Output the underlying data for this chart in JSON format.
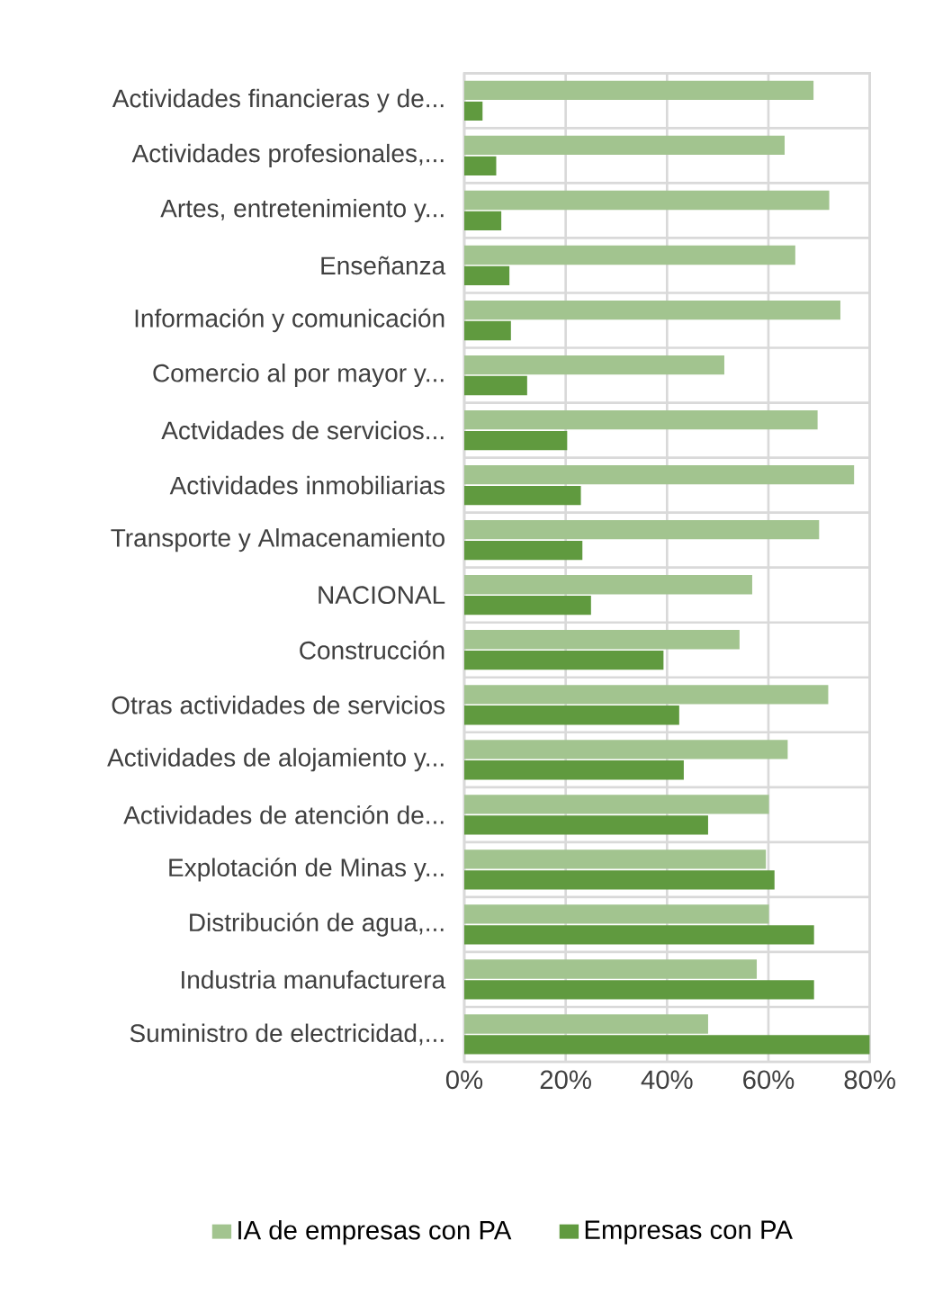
{
  "chart_data": {
    "type": "bar",
    "orientation": "horizontal",
    "categories": [
      "Actividades financieras y de...",
      "Actividades profesionales,...",
      "Artes, entretenimiento y...",
      "Enseñanza",
      "Información y comunicación",
      "Comercio al por mayor y...",
      "Actvidades de servicios...",
      "Actividades inmobiliarias",
      "Transporte y Almacenamiento",
      "NACIONAL",
      "Construcción",
      "Otras actividades de servicios",
      "Actividades de alojamiento y...",
      "Actividades de atención de...",
      "Explotación de Minas y...",
      "Distribución de agua,...",
      "Industria manufacturera",
      "Suministro de electricidad,..."
    ],
    "series": [
      {
        "name": "IA de empresas con PA",
        "color": "#a2c48f",
        "values": [
          68.9,
          63.2,
          72.0,
          65.3,
          74.2,
          51.3,
          69.7,
          76.9,
          70.0,
          56.8,
          54.3,
          71.8,
          63.8,
          60.1,
          59.5,
          60.1,
          57.7,
          48.1
        ]
      },
      {
        "name": "Empresas con PA",
        "color": "#609a3f",
        "values": [
          3.6,
          6.3,
          7.3,
          8.9,
          9.2,
          12.4,
          20.3,
          23.0,
          23.3,
          25.0,
          39.3,
          42.4,
          43.3,
          48.1,
          61.2,
          69.0,
          69.0,
          80.0
        ]
      }
    ],
    "xlim": [
      0,
      80
    ],
    "xticks": [
      {
        "value": 0,
        "label": "0%"
      },
      {
        "value": 20,
        "label": "20%"
      },
      {
        "value": 40,
        "label": "40%"
      },
      {
        "value": 60,
        "label": "60%"
      },
      {
        "value": 80,
        "label": "80%"
      }
    ],
    "grid": true,
    "legend": "bottom"
  }
}
